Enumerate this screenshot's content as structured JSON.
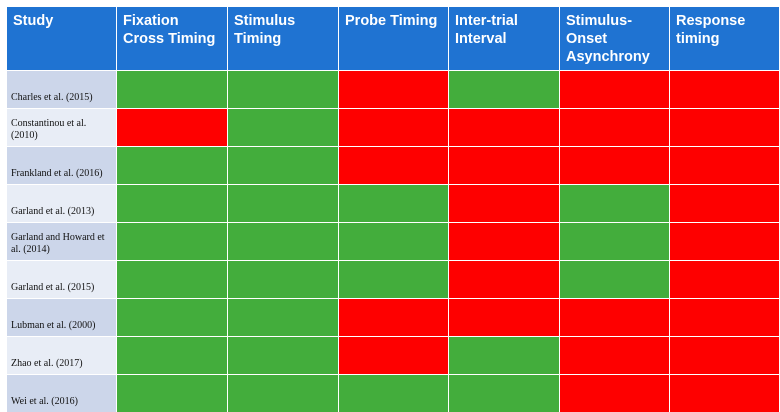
{
  "table": {
    "columns": [
      "Study",
      "Fixation Cross Timing",
      "Stimulus Timing",
      "Probe Timing",
      "Inter-trial Interval",
      "Stimulus-Onset Asynchrony",
      "Response timing"
    ],
    "status_colors": {
      "green": "#43ad3c",
      "red": "#fe0000"
    },
    "rows": [
      {
        "study": "Charles et al. (2015)",
        "cells": [
          "green",
          "green",
          "red",
          "green",
          "red",
          "red"
        ]
      },
      {
        "study": "Constantinou  et al. (2010)",
        "cells": [
          "red",
          "green",
          "red",
          "red",
          "red",
          "red"
        ]
      },
      {
        "study": "Frankland  et al. (2016)",
        "cells": [
          "green",
          "green",
          "red",
          "red",
          "red",
          "red"
        ]
      },
      {
        "study": "Garland  et al. (2013)",
        "cells": [
          "green",
          "green",
          "green",
          "red",
          "green",
          "red"
        ]
      },
      {
        "study": "Garland  and Howard et al. (2014)",
        "cells": [
          "green",
          "green",
          "green",
          "red",
          "green",
          "red"
        ]
      },
      {
        "study": "Garland  et al. (2015)",
        "cells": [
          "green",
          "green",
          "green",
          "red",
          "green",
          "red"
        ]
      },
      {
        "study": "Lubman  et al. (2000)",
        "cells": [
          "green",
          "green",
          "red",
          "red",
          "red",
          "red"
        ]
      },
      {
        "study": "Zhao et al. (2017)",
        "cells": [
          "green",
          "green",
          "red",
          "green",
          "red",
          "red"
        ]
      },
      {
        "study": "Wei et al.  (2016)",
        "cells": [
          "green",
          "green",
          "green",
          "green",
          "red",
          "red"
        ]
      }
    ]
  }
}
